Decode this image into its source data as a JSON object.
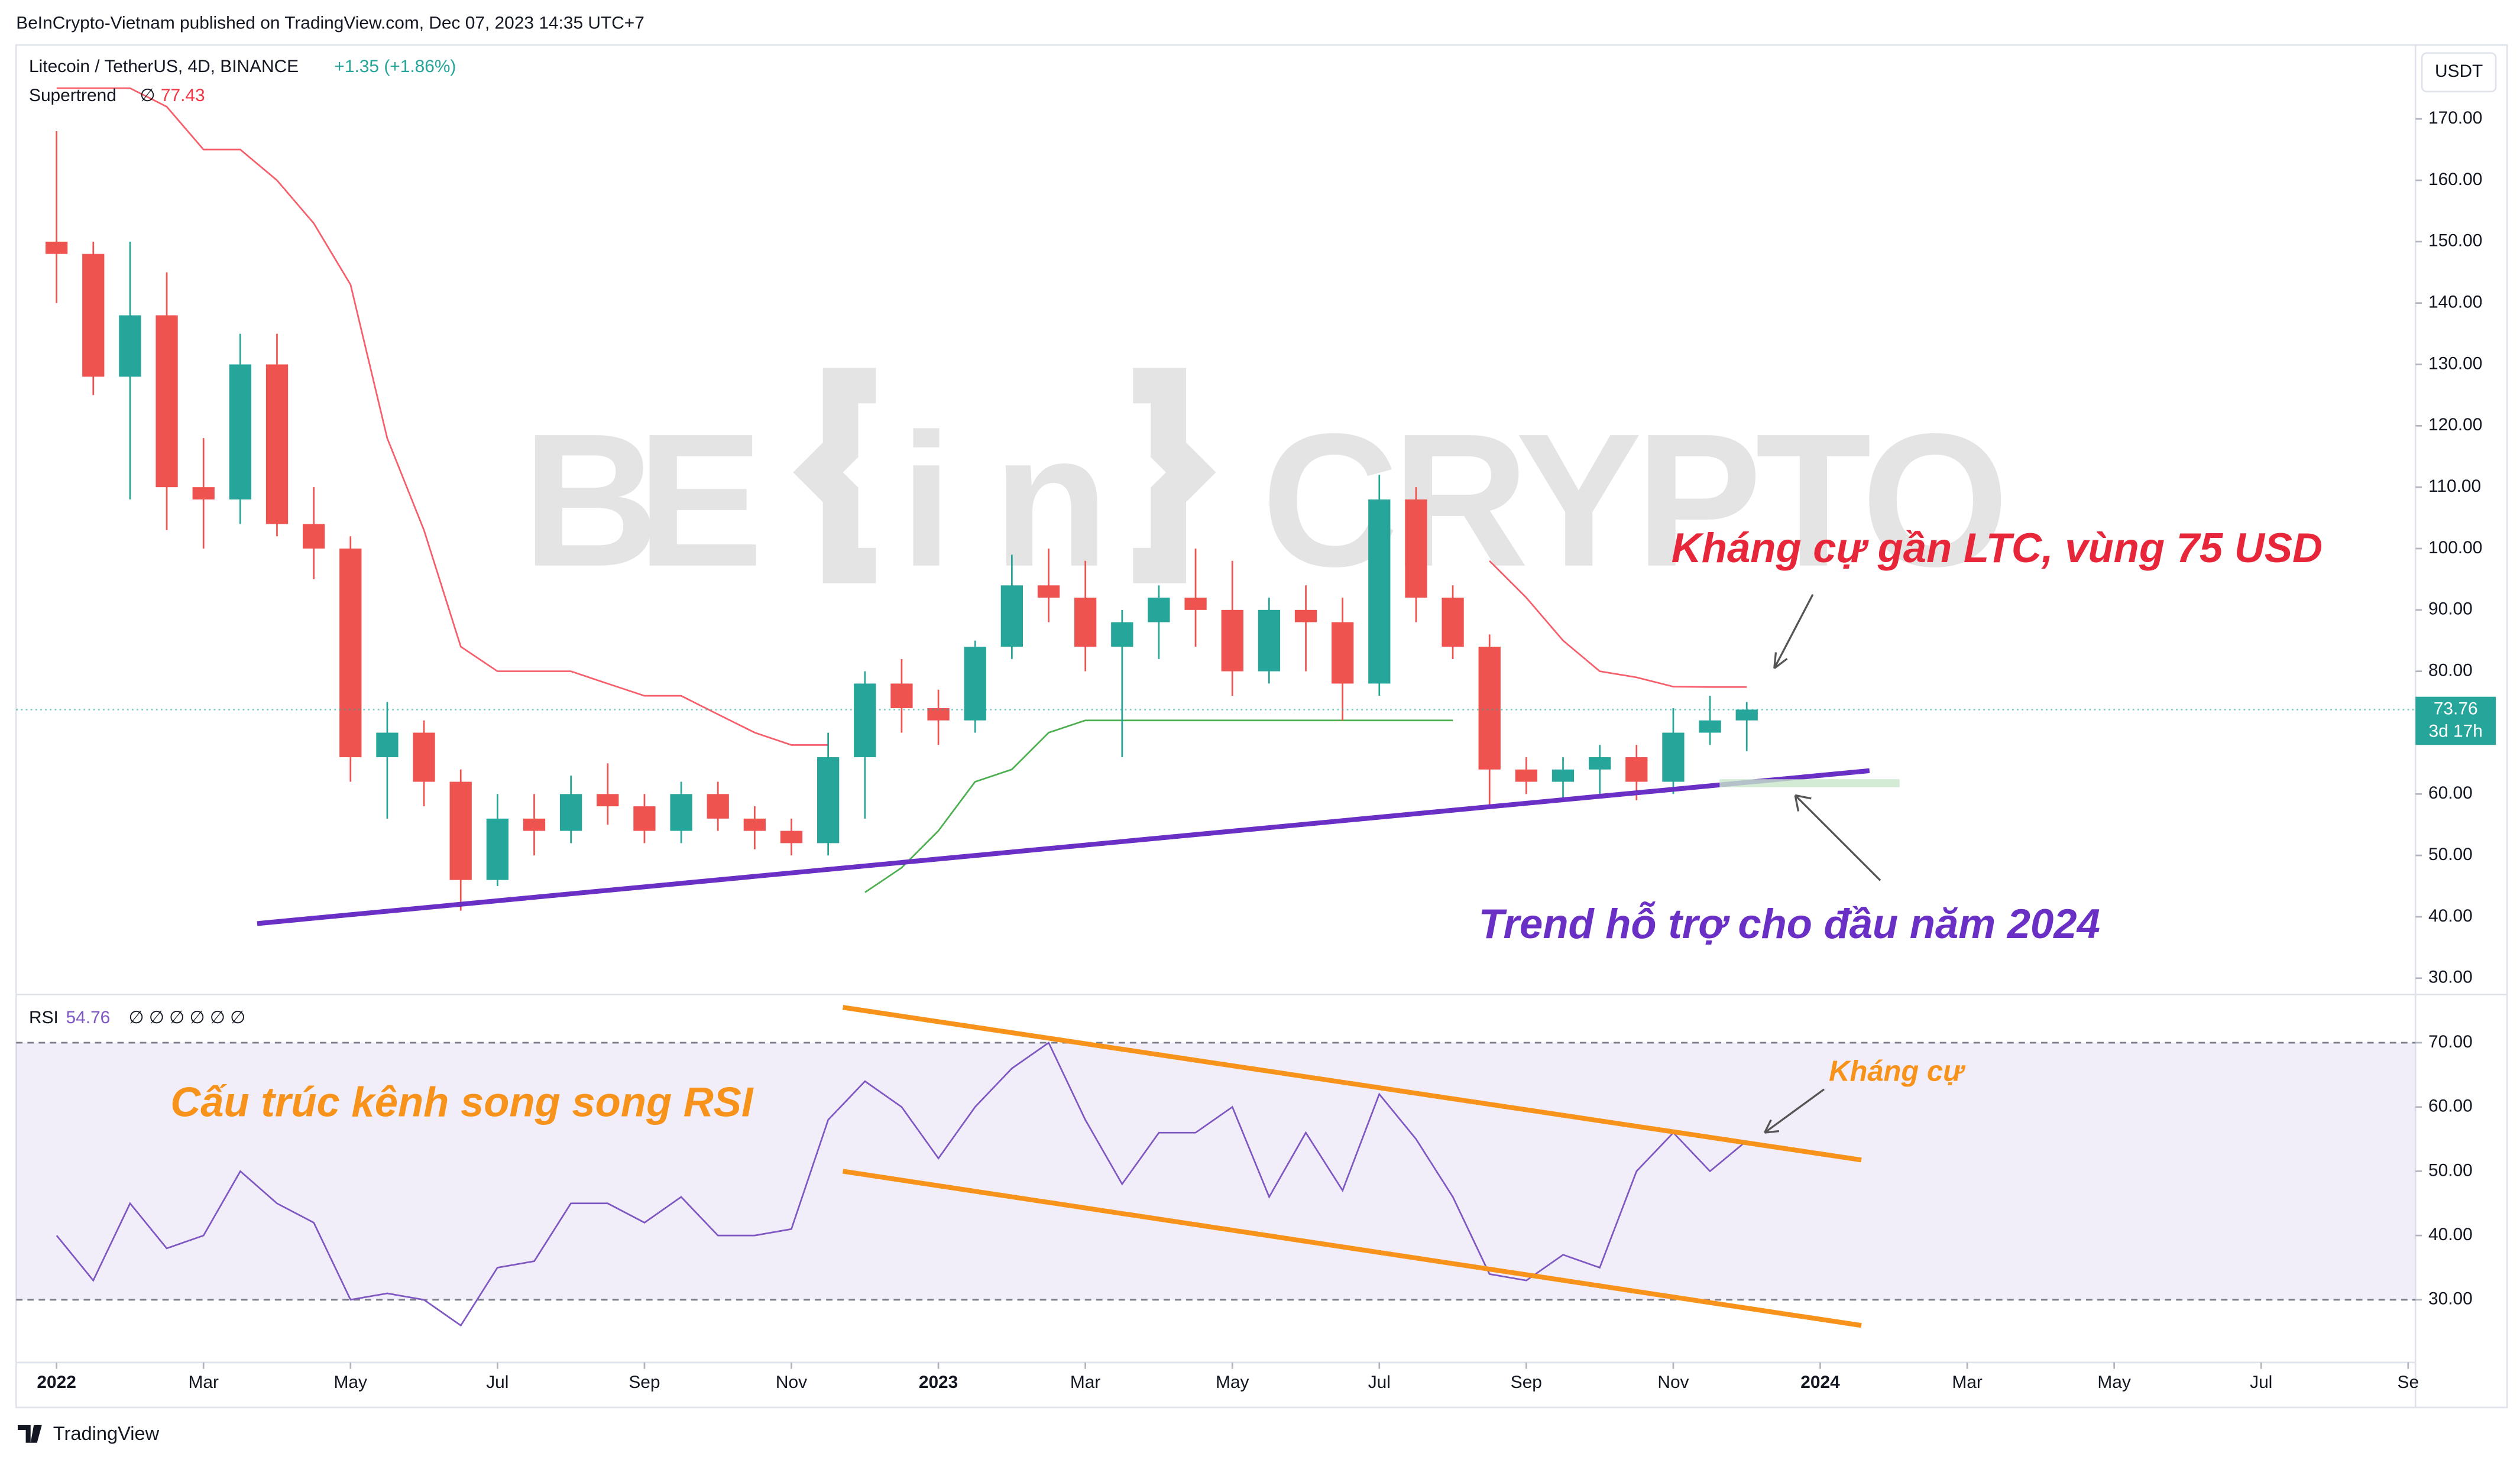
{
  "header": {
    "published": "BeInCrypto-Vietnam published on TradingView.com, Dec 07, 2023 14:35 UTC+7"
  },
  "watermark": {
    "left": "BE",
    "middle": "in",
    "right": "CRYPTO"
  },
  "footer": {
    "brand": "TradingView"
  },
  "chart_data": [
    {
      "type": "candlestick",
      "title": "Litecoin / TetherUS, 4D, BINANCE",
      "change": "+1.35 (+1.86%)",
      "currency": "USDT",
      "countdown": "3d 17h",
      "up_color": "#26a69a",
      "down_color": "#ef5350",
      "x": [
        0,
        0.5,
        1,
        1.5,
        2,
        2.5,
        3,
        3.5,
        4,
        4.5,
        5,
        5.5,
        6,
        6.5,
        7,
        7.5,
        8,
        8.5,
        9,
        9.5,
        10,
        10.5,
        11,
        11.5,
        12,
        12.5,
        13,
        13.5,
        14,
        14.5,
        15,
        15.5,
        16,
        16.5,
        17,
        17.5,
        18,
        18.5,
        19,
        19.5,
        20,
        20.5,
        21,
        21.5,
        22,
        22.5,
        23
      ],
      "open": [
        150,
        148,
        128,
        138,
        110,
        108,
        130,
        104,
        100,
        66,
        70,
        62,
        46,
        56,
        54,
        60,
        58,
        54,
        60,
        56,
        54,
        52,
        66,
        78,
        74,
        72,
        84,
        94,
        92,
        84,
        88,
        92,
        90,
        80,
        90,
        88,
        78,
        108,
        92,
        84,
        64,
        62,
        64,
        66,
        62,
        70,
        72
      ],
      "high": [
        168,
        150,
        150,
        145,
        118,
        135,
        135,
        110,
        102,
        75,
        72,
        64,
        60,
        60,
        63,
        65,
        60,
        62,
        62,
        58,
        56,
        70,
        80,
        82,
        77,
        85,
        99,
        100,
        98,
        90,
        94,
        100,
        98,
        92,
        94,
        92,
        112,
        110,
        94,
        86,
        66,
        66,
        68,
        68,
        74,
        76,
        75
      ],
      "low": [
        140,
        125,
        108,
        103,
        100,
        104,
        102,
        95,
        62,
        56,
        58,
        41,
        45,
        50,
        52,
        55,
        52,
        52,
        54,
        51,
        50,
        50,
        56,
        70,
        68,
        70,
        82,
        88,
        80,
        66,
        82,
        84,
        76,
        78,
        80,
        72,
        76,
        88,
        82,
        58,
        60,
        59,
        60,
        59,
        60,
        68,
        67
      ],
      "close": [
        148,
        128,
        138,
        110,
        108,
        130,
        104,
        100,
        66,
        70,
        62,
        46,
        56,
        54,
        60,
        58,
        54,
        60,
        56,
        54,
        52,
        66,
        78,
        74,
        72,
        84,
        94,
        92,
        84,
        88,
        92,
        90,
        80,
        90,
        88,
        78,
        108,
        92,
        84,
        64,
        62,
        64,
        66,
        62,
        70,
        72,
        73.76
      ],
      "supertrend": {
        "name": "Supertrend",
        "symbol": "∅",
        "up_color": "#4caf50",
        "down_color": "#f23645",
        "down": [
          175,
          175,
          175,
          172,
          165,
          165,
          160,
          153,
          143,
          118,
          103,
          84,
          80,
          80,
          80,
          78,
          76,
          76,
          73,
          70,
          68,
          68,
          null,
          null,
          null,
          null,
          null,
          null,
          null,
          null,
          null,
          null,
          null,
          null,
          null,
          null,
          null,
          null,
          null,
          98,
          92,
          85,
          80,
          79,
          77.5,
          77.43,
          77.43
        ],
        "up": [
          null,
          null,
          null,
          null,
          null,
          null,
          null,
          null,
          null,
          null,
          null,
          null,
          null,
          null,
          null,
          null,
          null,
          null,
          null,
          null,
          null,
          null,
          44,
          48,
          54,
          62,
          64,
          70,
          72,
          72,
          72,
          72,
          72,
          72,
          72,
          72,
          72,
          72,
          72,
          null,
          null,
          null,
          null,
          null,
          null,
          null,
          null
        ]
      },
      "trendline": {
        "x": [
          2.73,
          24.67
        ],
        "y": [
          38.9,
          63.8
        ],
        "color": "#6a2fc4"
      },
      "annotations": [
        {
          "text": "Kháng cự gần LTC, vùng 75 USD",
          "color": "#e8263a"
        },
        {
          "text": "Trend hỗ trợ cho đầu năm 2024",
          "color": "#6a2fc4"
        }
      ],
      "xlim": [
        -0.55,
        32.1
      ],
      "xticks": [
        {
          "value": 0,
          "label": "2022"
        },
        {
          "value": 2,
          "label": "Mar"
        },
        {
          "value": 4,
          "label": "May"
        },
        {
          "value": 6,
          "label": "Jul"
        },
        {
          "value": 8,
          "label": "Sep"
        },
        {
          "value": 10,
          "label": "Nov"
        },
        {
          "value": 12,
          "label": "2023"
        },
        {
          "value": 14,
          "label": "Mar"
        },
        {
          "value": 16,
          "label": "May"
        },
        {
          "value": 18,
          "label": "Jul"
        },
        {
          "value": 20,
          "label": "Sep"
        },
        {
          "value": 22,
          "label": "Nov"
        },
        {
          "value": 24,
          "label": "2024"
        },
        {
          "value": 26,
          "label": "Mar"
        },
        {
          "value": 28,
          "label": "May"
        },
        {
          "value": 30,
          "label": "Jul"
        },
        {
          "value": 32,
          "label": "Se"
        }
      ],
      "ylim": [
        27.6,
        181
      ],
      "yticks": [
        {
          "value": 30,
          "label": "30.00"
        },
        {
          "value": 40,
          "label": "40.00"
        },
        {
          "value": 50,
          "label": "50.00"
        },
        {
          "value": 60,
          "label": "60.00"
        },
        {
          "value": 70,
          "label": "70.00"
        },
        {
          "value": 80,
          "label": "80.00"
        },
        {
          "value": 90,
          "label": "90.00"
        },
        {
          "value": 100,
          "label": "100.00"
        },
        {
          "value": 110,
          "label": "110.00"
        },
        {
          "value": 120,
          "label": "120.00"
        },
        {
          "value": 130,
          "label": "130.00"
        },
        {
          "value": 140,
          "label": "140.00"
        },
        {
          "value": 150,
          "label": "150.00"
        },
        {
          "value": 160,
          "label": "160.00"
        },
        {
          "value": 170,
          "label": "170.00"
        }
      ]
    },
    {
      "type": "line",
      "name": "RSI",
      "symbols": "∅ ∅ ∅ ∅ ∅ ∅",
      "color": "#7e57c2",
      "x": [
        0,
        0.5,
        1,
        1.5,
        2,
        2.5,
        3,
        3.5,
        4,
        4.5,
        5,
        5.5,
        6,
        6.5,
        7,
        7.5,
        8,
        8.5,
        9,
        9.5,
        10,
        10.5,
        11,
        11.5,
        12,
        12.5,
        13,
        13.5,
        14,
        14.5,
        15,
        15.5,
        16,
        16.5,
        17,
        17.5,
        18,
        18.5,
        19,
        19.5,
        20,
        20.5,
        21,
        21.5,
        22,
        22.5,
        23
      ],
      "values": [
        40,
        33,
        45,
        38,
        40,
        50,
        45,
        42,
        30,
        31,
        30,
        26,
        35,
        36,
        45,
        45,
        42,
        46,
        40,
        40,
        41,
        58,
        64,
        60,
        52,
        60,
        66,
        70,
        58,
        48,
        56,
        56,
        60,
        46,
        56,
        47,
        62,
        55,
        46,
        34,
        33,
        37,
        35,
        50,
        56,
        50,
        54.76
      ],
      "band": [
        30,
        70
      ],
      "channel": {
        "color": "#f7931a",
        "upper": {
          "x": [
            10.7,
            24.56
          ],
          "y": [
            75.5,
            51.75
          ]
        },
        "lower": {
          "x": [
            10.7,
            24.56
          ],
          "y": [
            50,
            26
          ]
        }
      },
      "annotations": [
        {
          "text": "Cấu trúc kênh song song RSI",
          "color": "#f7931a"
        },
        {
          "text": "Kháng cự",
          "color": "#f7931a"
        }
      ],
      "xlim": [
        -0.55,
        32.1
      ],
      "ylim": [
        20.25,
        77.25
      ],
      "yticks": [
        {
          "value": 30,
          "label": "30.00"
        },
        {
          "value": 40,
          "label": "40.00"
        },
        {
          "value": 50,
          "label": "50.00"
        },
        {
          "value": 60,
          "label": "60.00"
        },
        {
          "value": 70,
          "label": "70.00"
        }
      ]
    }
  ]
}
